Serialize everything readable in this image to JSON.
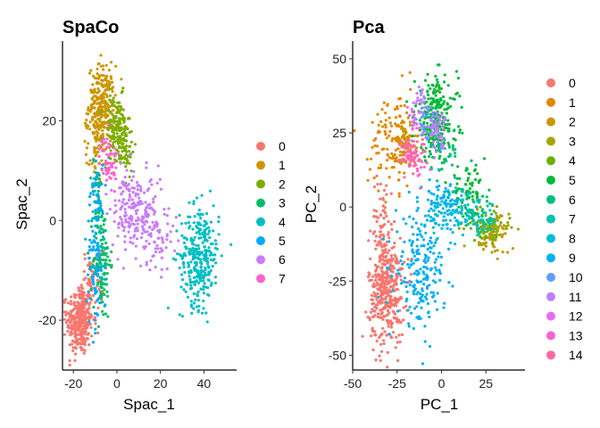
{
  "palette": [
    "#F8766D",
    "#D89000",
    "#A3A500",
    "#39B600",
    "#00BF7D",
    "#00BFC4",
    "#00B0F6",
    "#9590FF",
    "#E76BF3",
    "#FF62BC"
  ],
  "palette15": [
    "#F8766D",
    "#E58700",
    "#C99800",
    "#A3A500",
    "#6BB100",
    "#00BA38",
    "#00BF7D",
    "#00C0AF",
    "#00BCD8",
    "#00B0F6",
    "#619CFF",
    "#B983FF",
    "#E76BF3",
    "#FD61D1",
    "#FF67A4"
  ],
  "chart_data": [
    {
      "type": "scatter",
      "title": "SpaCo",
      "xlabel": "Spac_1",
      "ylabel": "Spac_2",
      "xlim": [
        -25,
        55
      ],
      "ylim": [
        -30,
        36
      ],
      "xticks": [
        -20,
        0,
        20,
        40
      ],
      "yticks": [
        -20,
        0,
        20
      ],
      "legend_position": "right",
      "legend": [
        "0",
        "1",
        "2",
        "3",
        "4",
        "5",
        "6",
        "7"
      ],
      "series": [
        {
          "name": "0",
          "color": "#F8766D",
          "clusters": [
            {
              "cx": -17,
              "cy": -20,
              "sx": 3,
              "sy": 3.5,
              "n": 320
            },
            {
              "cx": -11,
              "cy": -12,
              "sx": 2.5,
              "sy": 3,
              "n": 60
            }
          ]
        },
        {
          "name": "1",
          "color": "#CD9600",
          "clusters": [
            {
              "cx": -7,
              "cy": 23,
              "sx": 3,
              "sy": 4,
              "n": 260
            },
            {
              "cx": -10,
              "cy": 14,
              "sx": 2,
              "sy": 3,
              "n": 40
            }
          ]
        },
        {
          "name": "2",
          "color": "#7CAE00",
          "clusters": [
            {
              "cx": 0,
              "cy": 18,
              "sx": 3,
              "sy": 3.5,
              "n": 160
            },
            {
              "cx": 4,
              "cy": 14,
              "sx": 2,
              "sy": 2,
              "n": 40
            }
          ]
        },
        {
          "name": "3",
          "color": "#00BE67",
          "clusters": [
            {
              "cx": -7,
              "cy": -8,
              "sx": 2,
              "sy": 6,
              "n": 130
            },
            {
              "cx": -9,
              "cy": 4,
              "sx": 1.5,
              "sy": 4,
              "n": 40
            }
          ]
        },
        {
          "name": "4",
          "color": "#00BFC4",
          "clusters": [
            {
              "cx": 38,
              "cy": -7,
              "sx": 4.5,
              "sy": 5,
              "n": 300
            }
          ]
        },
        {
          "name": "5",
          "color": "#00A9FF",
          "clusters": [
            {
              "cx": -10,
              "cy": -8,
              "sx": 2,
              "sy": 7,
              "n": 90
            },
            {
              "cx": -9,
              "cy": 6,
              "sx": 1.5,
              "sy": 4,
              "n": 30
            }
          ]
        },
        {
          "name": "6",
          "color": "#C77CFF",
          "clusters": [
            {
              "cx": 10,
              "cy": 1,
              "sx": 6,
              "sy": 4,
              "n": 170
            },
            {
              "cx": 18,
              "cy": -4,
              "sx": 4,
              "sy": 3,
              "n": 50
            },
            {
              "cx": 4,
              "cy": 6,
              "sx": 3,
              "sy": 3,
              "n": 40
            }
          ]
        },
        {
          "name": "7",
          "color": "#FF61CC",
          "clusters": [
            {
              "cx": -4,
              "cy": 12,
              "sx": 2,
              "sy": 2.5,
              "n": 60
            }
          ]
        }
      ]
    },
    {
      "type": "scatter",
      "title": "Pca",
      "xlabel": "PC_1",
      "ylabel": "PC_2",
      "xlim": [
        -50,
        47
      ],
      "ylim": [
        -55,
        56
      ],
      "xticks": [
        -50,
        -25,
        0,
        25
      ],
      "yticks": [
        -50,
        -25,
        0,
        25,
        50
      ],
      "legend_position": "right",
      "legend": [
        "0",
        "1",
        "2",
        "3",
        "4",
        "5",
        "6",
        "7",
        "8",
        "9",
        "10",
        "11",
        "12",
        "13",
        "14"
      ],
      "series": [
        {
          "name": "0",
          "color": "#F8766D",
          "clusters": [
            {
              "cx": -31,
              "cy": -28,
              "sx": 5,
              "sy": 9,
              "n": 380
            },
            {
              "cx": -33,
              "cy": -5,
              "sx": 3,
              "sy": 8,
              "n": 60
            }
          ]
        },
        {
          "name": "1",
          "color": "#E58700",
          "clusters": [
            {
              "cx": -27,
              "cy": 22,
              "sx": 7,
              "sy": 8,
              "n": 130
            }
          ]
        },
        {
          "name": "2",
          "color": "#C99800",
          "clusters": [
            {
              "cx": -20,
              "cy": 22,
              "sx": 4,
              "sy": 4,
              "n": 60
            },
            {
              "cx": 30,
              "cy": -10,
              "sx": 4,
              "sy": 3,
              "n": 40
            }
          ]
        },
        {
          "name": "3",
          "color": "#A3A500",
          "clusters": [
            {
              "cx": 28,
              "cy": -8,
              "sx": 5,
              "sy": 3,
              "n": 60
            }
          ]
        },
        {
          "name": "4",
          "color": "#6BB100",
          "clusters": [
            {
              "cx": 25,
              "cy": -6,
              "sx": 6,
              "sy": 3,
              "n": 50
            }
          ]
        },
        {
          "name": "5",
          "color": "#00BA38",
          "clusters": [
            {
              "cx": -3,
              "cy": 30,
              "sx": 6,
              "sy": 7,
              "n": 230
            },
            {
              "cx": 15,
              "cy": 5,
              "sx": 5,
              "sy": 4,
              "n": 80
            }
          ]
        },
        {
          "name": "6",
          "color": "#00BF7D",
          "clusters": [
            {
              "cx": 0,
              "cy": 18,
              "sx": 5,
              "sy": 5,
              "n": 40
            }
          ]
        },
        {
          "name": "7",
          "color": "#00C0AF",
          "clusters": [
            {
              "cx": 22,
              "cy": -4,
              "sx": 5,
              "sy": 3,
              "n": 60
            }
          ]
        },
        {
          "name": "8",
          "color": "#00BCD8",
          "clusters": [
            {
              "cx": 5,
              "cy": -2,
              "sx": 7,
              "sy": 4,
              "n": 90
            }
          ]
        },
        {
          "name": "9",
          "color": "#00B0F6",
          "clusters": [
            {
              "cx": -12,
              "cy": -22,
              "sx": 7,
              "sy": 9,
              "n": 200
            },
            {
              "cx": 0,
              "cy": 2,
              "sx": 5,
              "sy": 4,
              "n": 60
            }
          ]
        },
        {
          "name": "10",
          "color": "#619CFF",
          "clusters": [
            {
              "cx": -8,
              "cy": 28,
              "sx": 3,
              "sy": 4,
              "n": 30
            }
          ]
        },
        {
          "name": "11",
          "color": "#B983FF",
          "clusters": [
            {
              "cx": -3,
              "cy": 26,
              "sx": 3,
              "sy": 3,
              "n": 60
            },
            {
              "cx": -12,
              "cy": 37,
              "sx": 2,
              "sy": 3,
              "n": 20
            }
          ]
        },
        {
          "name": "12",
          "color": "#E76BF3",
          "clusters": [
            {
              "cx": -16,
              "cy": 30,
              "sx": 2,
              "sy": 3,
              "n": 20
            }
          ]
        },
        {
          "name": "13",
          "color": "#FD61D1",
          "clusters": [
            {
              "cx": -14,
              "cy": 16,
              "sx": 3,
              "sy": 3,
              "n": 25
            }
          ]
        },
        {
          "name": "14",
          "color": "#FF67A4",
          "clusters": [
            {
              "cx": -17,
              "cy": 18,
              "sx": 3,
              "sy": 3,
              "n": 60
            }
          ]
        }
      ]
    }
  ]
}
